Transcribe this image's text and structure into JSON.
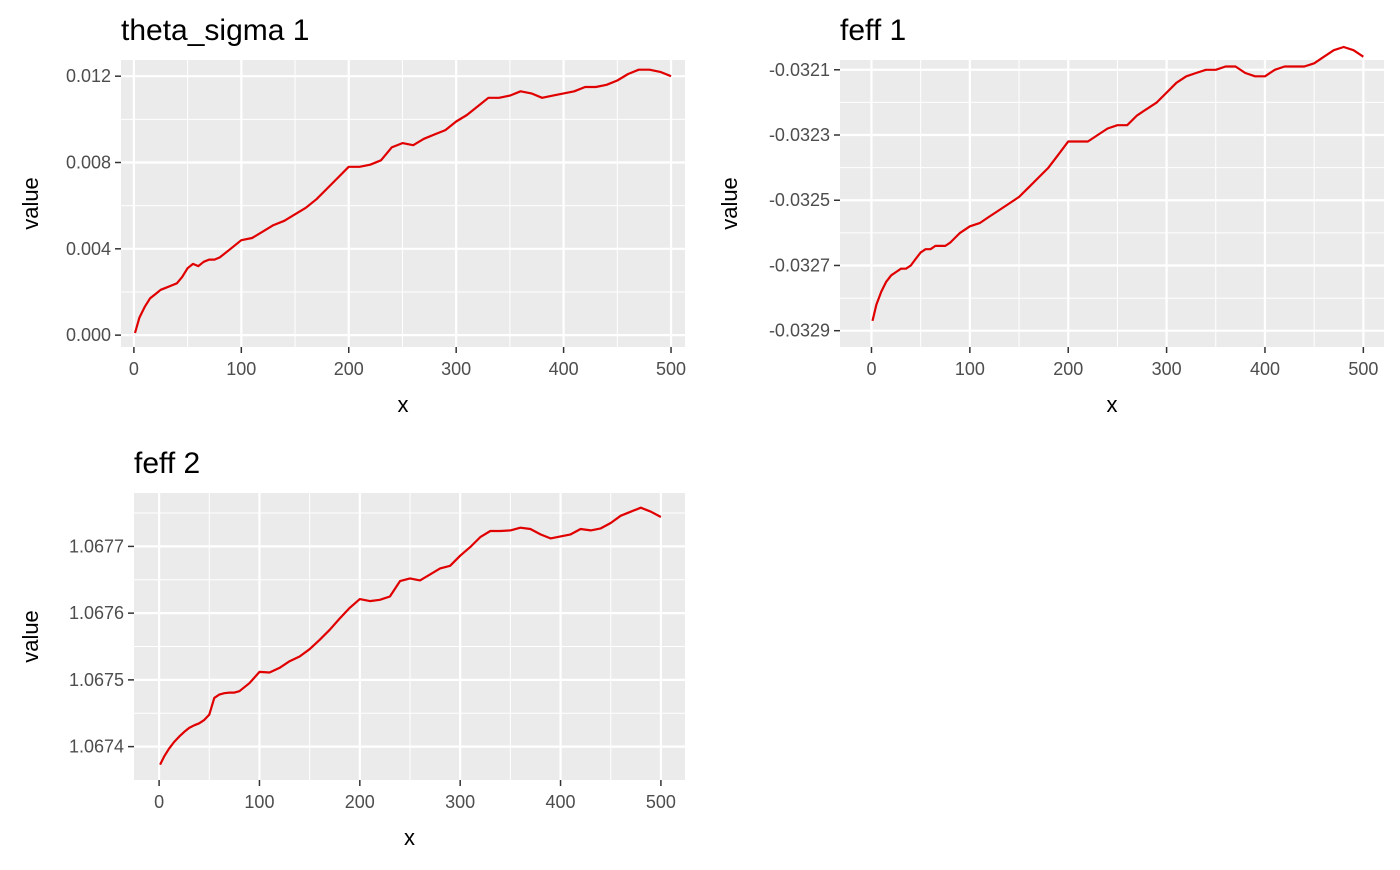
{
  "chart_data": [
    {
      "type": "line",
      "title": "theta_sigma 1",
      "xlabel": "x",
      "ylabel": "value",
      "xlim": [
        -12,
        513
      ],
      "ylim": [
        -0.00055,
        0.01275
      ],
      "x_ticks": [
        0,
        100,
        200,
        300,
        400,
        500
      ],
      "x_tick_labels": [
        "0",
        "100",
        "200",
        "300",
        "400",
        "500"
      ],
      "y_ticks": [
        0.0,
        0.004,
        0.008,
        0.012
      ],
      "y_tick_labels": [
        "0.000",
        "0.004",
        "0.008",
        "0.012"
      ],
      "grid": true,
      "line_color": "#e00000",
      "series": [
        {
          "x": [
            1,
            5,
            10,
            15,
            20,
            25,
            30,
            35,
            40,
            45,
            50,
            55,
            60,
            65,
            70,
            75,
            80,
            90,
            100,
            110,
            120,
            130,
            140,
            150,
            160,
            170,
            180,
            190,
            200,
            210,
            220,
            230,
            240,
            250,
            260,
            270,
            280,
            290,
            300,
            310,
            320,
            330,
            340,
            350,
            360,
            370,
            380,
            390,
            400,
            410,
            420,
            430,
            440,
            450,
            460,
            470,
            480,
            490,
            500
          ],
          "y": [
            0.0001,
            0.0008,
            0.0013,
            0.0017,
            0.0019,
            0.0021,
            0.0022,
            0.0023,
            0.0024,
            0.0027,
            0.0031,
            0.0033,
            0.0032,
            0.0034,
            0.0035,
            0.0035,
            0.0036,
            0.004,
            0.0044,
            0.0045,
            0.0048,
            0.0051,
            0.0053,
            0.0056,
            0.0059,
            0.0063,
            0.0068,
            0.0073,
            0.0078,
            0.0078,
            0.0079,
            0.0081,
            0.0087,
            0.0089,
            0.0088,
            0.0091,
            0.0093,
            0.0095,
            0.0099,
            0.0102,
            0.0106,
            0.011,
            0.011,
            0.0111,
            0.0113,
            0.0112,
            0.011,
            0.0111,
            0.0112,
            0.0113,
            0.0115,
            0.0115,
            0.0116,
            0.0118,
            0.0121,
            0.0123,
            0.0123,
            0.0122,
            0.012
          ]
        }
      ]
    },
    {
      "type": "line",
      "title": "feff 1",
      "xlabel": "x",
      "ylabel": "value",
      "xlim": [
        -32,
        521
      ],
      "ylim": [
        -0.03295,
        -0.03207
      ],
      "x_ticks": [
        0,
        100,
        200,
        300,
        400,
        500
      ],
      "x_tick_labels": [
        "0",
        "100",
        "200",
        "300",
        "400",
        "500"
      ],
      "y_ticks": [
        -0.0329,
        -0.0327,
        -0.0325,
        -0.0323,
        -0.0321
      ],
      "y_tick_labels": [
        "-0.0329",
        "-0.0327",
        "-0.0325",
        "-0.0323",
        "-0.0321"
      ],
      "grid": true,
      "line_color": "#e00000",
      "series": [
        {
          "x": [
            1,
            5,
            10,
            15,
            20,
            25,
            30,
            35,
            40,
            45,
            50,
            55,
            60,
            65,
            70,
            75,
            80,
            90,
            100,
            110,
            120,
            130,
            140,
            150,
            160,
            170,
            180,
            190,
            200,
            210,
            220,
            230,
            240,
            250,
            260,
            270,
            280,
            290,
            300,
            310,
            320,
            330,
            340,
            350,
            360,
            370,
            380,
            390,
            400,
            410,
            420,
            430,
            440,
            450,
            460,
            470,
            480,
            490,
            500
          ],
          "y": [
            -0.03287,
            -0.03282,
            -0.03278,
            -0.03275,
            -0.03273,
            -0.03272,
            -0.03271,
            -0.03271,
            -0.0327,
            -0.03268,
            -0.03266,
            -0.03265,
            -0.03265,
            -0.03264,
            -0.03264,
            -0.03264,
            -0.03263,
            -0.0326,
            -0.03258,
            -0.03257,
            -0.03255,
            -0.03253,
            -0.03251,
            -0.03249,
            -0.03246,
            -0.03243,
            -0.0324,
            -0.03236,
            -0.03232,
            -0.03232,
            -0.03232,
            -0.0323,
            -0.03228,
            -0.03227,
            -0.03227,
            -0.03224,
            -0.03222,
            -0.0322,
            -0.03217,
            -0.03214,
            -0.03212,
            -0.03211,
            -0.0321,
            -0.0321,
            -0.03209,
            -0.03209,
            -0.03211,
            -0.03212,
            -0.03212,
            -0.0321,
            -0.03209,
            -0.03209,
            -0.03209,
            -0.03208,
            -0.03206,
            -0.03204,
            -0.03203,
            -0.03204,
            -0.03206
          ]
        }
      ]
    },
    {
      "type": "line",
      "title": "feff 2",
      "xlabel": "x",
      "ylabel": "value",
      "xlim": [
        -25,
        524
      ],
      "ylim": [
        1.06735,
        1.06778
      ],
      "x_ticks": [
        0,
        100,
        200,
        300,
        400,
        500
      ],
      "x_tick_labels": [
        "0",
        "100",
        "200",
        "300",
        "400",
        "500"
      ],
      "y_ticks": [
        1.0674,
        1.0675,
        1.0676,
        1.0677
      ],
      "y_tick_labels": [
        "1.0674",
        "1.0675",
        "1.0676",
        "1.0677"
      ],
      "grid": true,
      "line_color": "#e00000",
      "series": [
        {
          "x": [
            1,
            5,
            10,
            15,
            20,
            25,
            30,
            35,
            40,
            45,
            50,
            55,
            60,
            65,
            70,
            75,
            80,
            90,
            100,
            110,
            120,
            130,
            140,
            150,
            160,
            170,
            180,
            190,
            200,
            210,
            220,
            230,
            240,
            250,
            260,
            270,
            280,
            290,
            300,
            310,
            320,
            330,
            340,
            350,
            360,
            370,
            380,
            390,
            400,
            410,
            420,
            430,
            440,
            450,
            460,
            470,
            480,
            490,
            500
          ],
          "y": [
            1.067373,
            1.067385,
            1.067397,
            1.067407,
            1.067415,
            1.067422,
            1.067428,
            1.067432,
            1.067435,
            1.06744,
            1.067448,
            1.067473,
            1.067478,
            1.06748,
            1.067481,
            1.067481,
            1.067483,
            1.067495,
            1.067512,
            1.067511,
            1.067518,
            1.067528,
            1.067535,
            1.067546,
            1.06756,
            1.067575,
            1.067592,
            1.067608,
            1.067621,
            1.067618,
            1.06762,
            1.067625,
            1.067648,
            1.067652,
            1.067649,
            1.067658,
            1.067667,
            1.067671,
            1.067686,
            1.067699,
            1.067714,
            1.067723,
            1.067723,
            1.067724,
            1.067728,
            1.067726,
            1.067718,
            1.067712,
            1.067715,
            1.067718,
            1.067726,
            1.067724,
            1.067727,
            1.067735,
            1.067746,
            1.067752,
            1.067758,
            1.067752,
            1.067744
          ]
        }
      ]
    }
  ]
}
